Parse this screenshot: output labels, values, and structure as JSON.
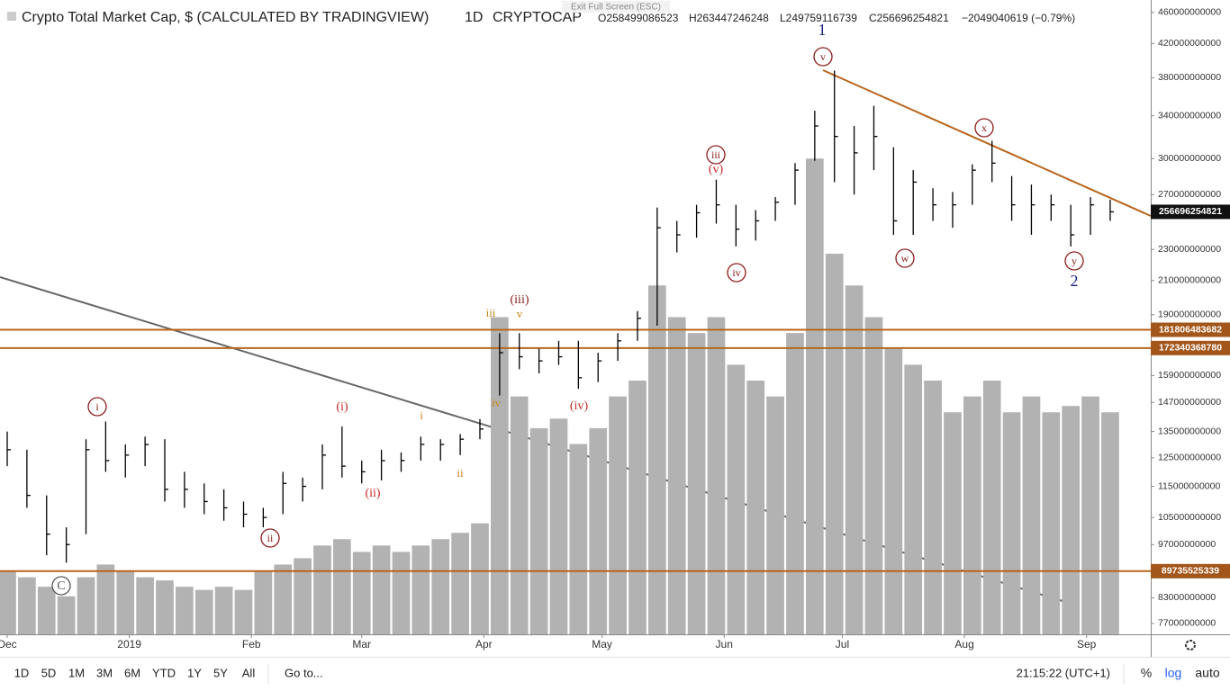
{
  "chart_data": {
    "type": "ohlc",
    "title": "Crypto Total Market Cap, $ (CALCULATED BY TRADINGVIEW)",
    "interval": "1D",
    "symbol": "CRYPTOCAP",
    "ohlc_text": [
      "O258499086523",
      "H263447246248",
      "L249759116739",
      "C256696254821",
      "−2049040619 (−0.79%)"
    ],
    "exit_hint": "Exit Full Screen (ESC)",
    "high": [
      135000000000.0,
      128000000000.0,
      112000000000.0,
      102000000000.0,
      132000000000.0,
      139000000000.0,
      130000000000.0,
      133000000000.0,
      132000000000.0,
      120000000000.0,
      116000000000.0,
      114000000000.0,
      110000000000.0,
      108000000000.0,
      120000000000.0,
      118000000000.0,
      130000000000.0,
      137000000000.0,
      124000000000.0,
      128000000000.0,
      127000000000.0,
      133000000000.0,
      132000000000.0,
      134000000000.0,
      140000000000.0,
      180000000000.0,
      180000000000.0,
      172000000000.0,
      176000000000.0,
      176000000000.0,
      170000000000.0,
      180000000000.0,
      192000000000.0,
      260000000000.0,
      250000000000.0,
      262000000000.0,
      282000000000.0,
      262000000000.0,
      258000000000.0,
      268000000000.0,
      296000000000.0,
      345000000000.0,
      388000000000.0,
      330000000000.0,
      350000000000.0,
      310000000000.0,
      290000000000.0,
      275000000000.0,
      272000000000.0,
      295000000000.0,
      316000000000.0,
      285000000000.0,
      278000000000.0,
      270000000000.0,
      262000000000.0,
      268000000000.0,
      266000000000.0
    ],
    "low": [
      122000000000.0,
      108000000000.0,
      94000000000.0,
      92000000000.0,
      100000000000.0,
      120000000000.0,
      118000000000.0,
      122000000000.0,
      110000000000.0,
      108000000000.0,
      106000000000.0,
      104000000000.0,
      102000000000.0,
      102000000000.0,
      106000000000.0,
      110000000000.0,
      114000000000.0,
      118000000000.0,
      116000000000.0,
      117000000000.0,
      120000000000.0,
      124000000000.0,
      124000000000.0,
      126000000000.0,
      132000000000.0,
      150000000000.0,
      162000000000.0,
      160000000000.0,
      164000000000.0,
      153000000000.0,
      156000000000.0,
      166000000000.0,
      176000000000.0,
      184000000000.0,
      228000000000.0,
      238000000000.0,
      248000000000.0,
      232000000000.0,
      236000000000.0,
      250000000000.0,
      262000000000.0,
      298000000000.0,
      280000000000.0,
      270000000000.0,
      290000000000.0,
      240000000000.0,
      240000000000.0,
      250000000000.0,
      245000000000.0,
      262000000000.0,
      280000000000.0,
      250000000000.0,
      240000000000.0,
      250000000000.0,
      232000000000.0,
      240000000000.0,
      250000000000.0
    ],
    "close": [
      128000000000.0,
      112000000000.0,
      100000000000.0,
      97000000000.0,
      128000000000.0,
      124000000000.0,
      126000000000.0,
      130000000000.0,
      114000000000.0,
      114000000000.0,
      110000000000.0,
      108000000000.0,
      106000000000.0,
      105000000000.0,
      116000000000.0,
      115000000000.0,
      126000000000.0,
      122000000000.0,
      120000000000.0,
      124000000000.0,
      124000000000.0,
      130000000000.0,
      130000000000.0,
      132000000000.0,
      136000000000.0,
      170000000000.0,
      168000000000.0,
      166000000000.0,
      168000000000.0,
      158000000000.0,
      166000000000.0,
      176000000000.0,
      188000000000.0,
      245000000000.0,
      240000000000.0,
      256000000000.0,
      262000000000.0,
      244000000000.0,
      250000000000.0,
      264000000000.0,
      290000000000.0,
      330000000000.0,
      320000000000.0,
      305000000000.0,
      320000000000.0,
      250000000000.0,
      280000000000.0,
      262000000000.0,
      262000000000.0,
      290000000000.0,
      296000000000.0,
      262000000000.0,
      262000000000.0,
      262000000000.0,
      240000000000.0,
      262000000000.0,
      256696254821
    ],
    "volume": [
      20,
      18,
      15,
      12,
      18,
      22,
      20,
      18,
      17,
      15,
      14,
      15,
      14,
      20,
      22,
      24,
      28,
      30,
      26,
      28,
      26,
      28,
      30,
      32,
      35,
      100,
      75,
      65,
      68,
      60,
      65,
      75,
      80,
      110,
      100,
      95,
      100,
      85,
      80,
      75,
      95,
      150,
      120,
      110,
      100,
      90,
      85,
      80,
      70,
      75,
      80,
      70,
      75,
      70,
      72,
      75,
      70
    ],
    "vlim": [
      0,
      200
    ],
    "log_scale": true,
    "ylim": [
      74600000000,
      477000000000
    ],
    "yticks": [
      460000000000,
      420000000000,
      380000000000,
      340000000000,
      300000000000,
      270000000000,
      230000000000,
      210000000000,
      190000000000,
      159000000000,
      147000000000,
      135000000000,
      125000000000,
      115000000000,
      105000000000,
      97000000000,
      83000000000,
      77000000000
    ],
    "xlim": [
      -0.366,
      58.06
    ],
    "xticks": [
      {
        "value": 0,
        "label": "Dec"
      },
      {
        "value": 6.2,
        "label": "2019"
      },
      {
        "value": 12.4,
        "label": "Feb"
      },
      {
        "value": 18,
        "label": "Mar"
      },
      {
        "value": 24.2,
        "label": "Apr"
      },
      {
        "value": 30.2,
        "label": "May"
      },
      {
        "value": 36.4,
        "label": "Jun"
      },
      {
        "value": 42.4,
        "label": "Jul"
      },
      {
        "value": 48.6,
        "label": "Aug"
      },
      {
        "value": 54.8,
        "label": "Sep"
      }
    ],
    "levels": [
      181806483682,
      172340368780,
      89735525339
    ],
    "annotations": [
      "1",
      "v",
      "iii",
      "(v)",
      "iv",
      "x",
      "w",
      "y",
      "2",
      "iii",
      "v",
      "(iii)",
      "iv",
      "(iv)",
      "i",
      "ii",
      "(i)",
      "(ii)",
      "i",
      "ii",
      "C"
    ],
    "colors": {
      "bar": "#000000",
      "volume": "#b2b2b2",
      "level": "#b8651b",
      "level_label": "#a3561a"
    }
  },
  "toolbar": {
    "ranges": [
      "1D",
      "5D",
      "1M",
      "3M",
      "6M",
      "YTD",
      "1Y",
      "5Y",
      "All"
    ],
    "goto": "Go to...",
    "clock": "21:15:22 (UTC+1)",
    "percent": "%",
    "log": "log",
    "auto": "auto"
  }
}
